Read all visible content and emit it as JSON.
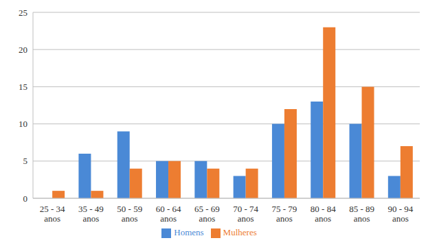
{
  "chart_data": {
    "type": "bar",
    "categories": [
      "25 - 34 anos",
      "35 - 49 anos",
      "50 - 59 anos",
      "60 - 64 anos",
      "65 - 69 anos",
      "70 - 74 anos",
      "75 - 79 anos",
      "80 - 84 anos",
      "85 - 89 anos",
      "90 - 94 anos"
    ],
    "series": [
      {
        "name": "Homens",
        "color": "#4a89d6",
        "values": [
          0,
          6,
          9,
          5,
          5,
          3,
          10,
          13,
          10,
          3
        ]
      },
      {
        "name": "Mulheres",
        "color": "#ed7d31",
        "values": [
          1,
          1,
          4,
          5,
          4,
          4,
          12,
          23,
          15,
          7
        ]
      }
    ],
    "ylim": [
      0,
      25
    ],
    "yticks": [
      0,
      5,
      10,
      15,
      20,
      25
    ],
    "grid": true,
    "legend": "bottom"
  }
}
